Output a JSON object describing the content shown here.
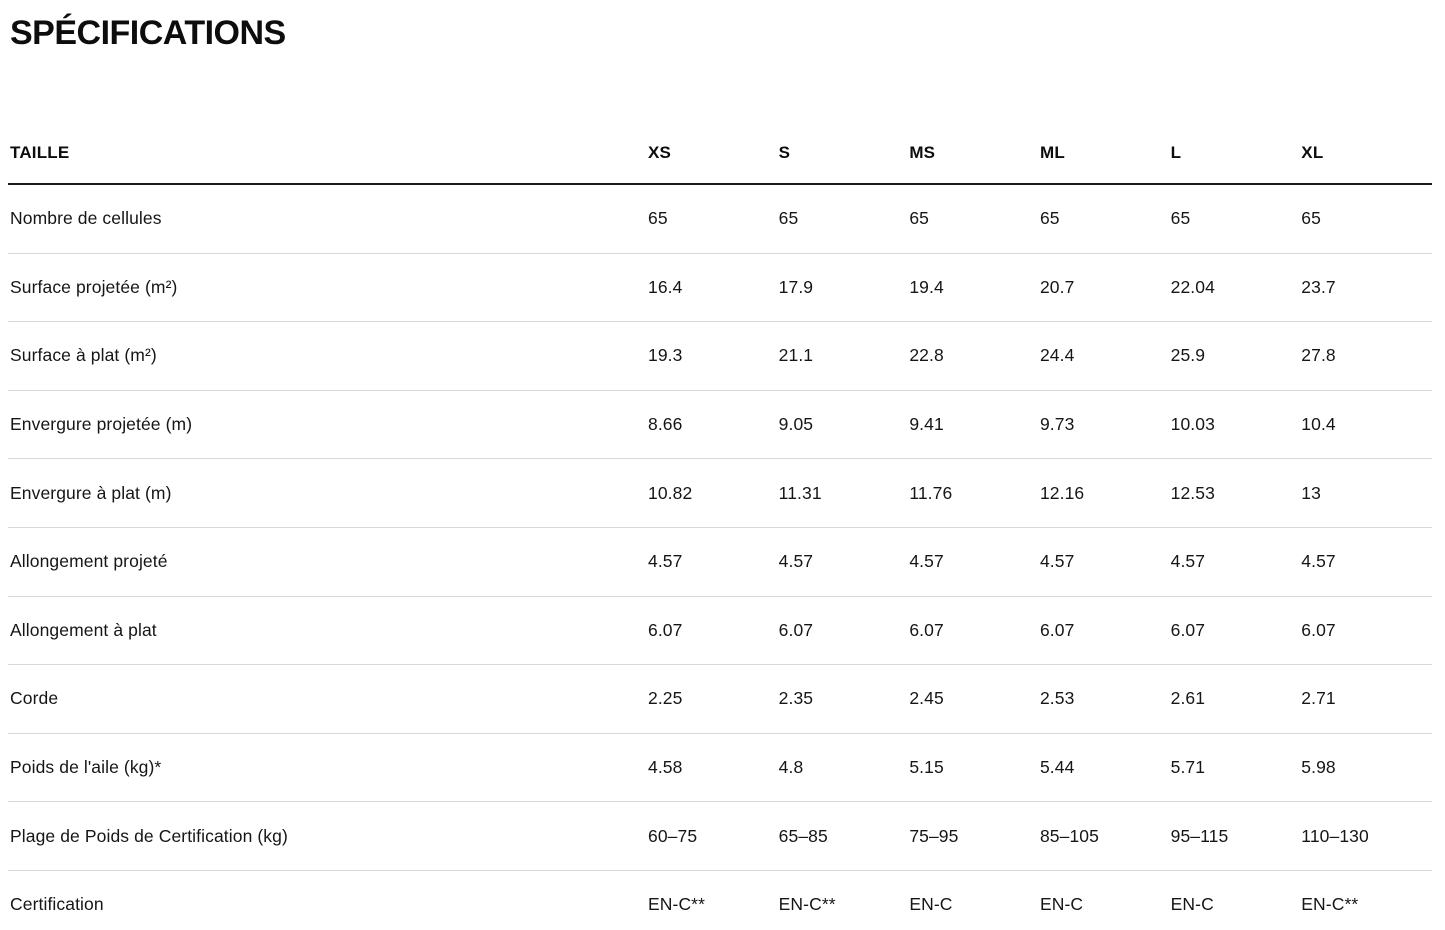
{
  "page": {
    "title": "SPÉCIFICATIONS"
  },
  "colors": {
    "text": "#111111",
    "header_rule": "#1a1a1a",
    "row_rule": "#d8d8d8",
    "background": "#ffffff"
  },
  "table": {
    "header": {
      "label": "TAILLE",
      "columns": [
        "XS",
        "S",
        "MS",
        "ML",
        "L",
        "XL"
      ]
    },
    "rows": [
      {
        "label": "Nombre de cellules",
        "values": [
          "65",
          "65",
          "65",
          "65",
          "65",
          "65"
        ]
      },
      {
        "label": "Surface projetée (m²)",
        "values": [
          "16.4",
          "17.9",
          "19.4",
          "20.7",
          "22.04",
          "23.7"
        ]
      },
      {
        "label": "Surface à plat (m²)",
        "values": [
          "19.3",
          "21.1",
          "22.8",
          "24.4",
          "25.9",
          "27.8"
        ]
      },
      {
        "label": "Envergure projetée (m)",
        "values": [
          "8.66",
          "9.05",
          "9.41",
          "9.73",
          "10.03",
          "10.4"
        ]
      },
      {
        "label": "Envergure à plat (m)",
        "values": [
          "10.82",
          "11.31",
          "11.76",
          "12.16",
          "12.53",
          "13"
        ]
      },
      {
        "label": "Allongement projeté",
        "values": [
          "4.57",
          "4.57",
          "4.57",
          "4.57",
          "4.57",
          "4.57"
        ]
      },
      {
        "label": "Allongement à plat",
        "values": [
          "6.07",
          "6.07",
          "6.07",
          "6.07",
          "6.07",
          "6.07"
        ]
      },
      {
        "label": "Corde",
        "values": [
          "2.25",
          "2.35",
          "2.45",
          "2.53",
          "2.61",
          "2.71"
        ]
      },
      {
        "label": "Poids de l'aile (kg)*",
        "values": [
          "4.58",
          "4.8",
          "5.15",
          "5.44",
          "5.71",
          "5.98"
        ]
      },
      {
        "label": "Plage de Poids de Certification (kg)",
        "values": [
          "60–75",
          "65–85",
          "75–95",
          "85–105",
          "95–115",
          "110–130"
        ]
      },
      {
        "label": "Certification",
        "values": [
          "EN-C**",
          "EN-C**",
          "EN-C",
          "EN-C",
          "EN-C",
          "EN-C**"
        ]
      }
    ]
  }
}
